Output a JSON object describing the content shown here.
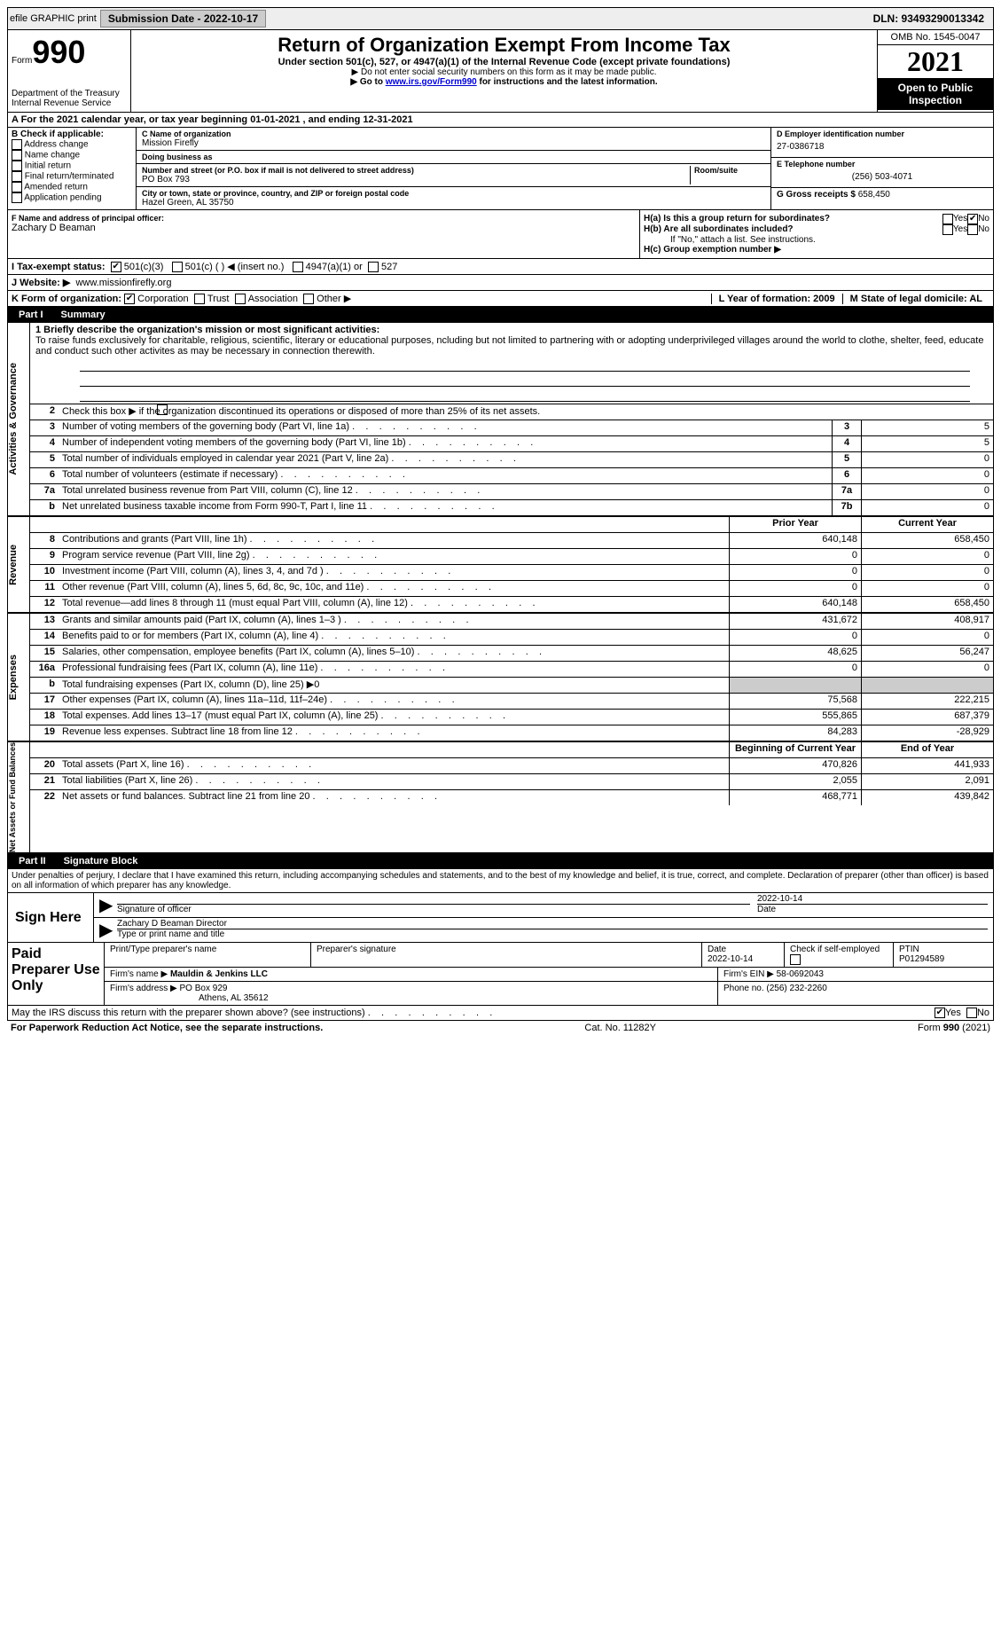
{
  "top": {
    "efile": "efile GRAPHIC print",
    "submission": "Submission Date - 2022-10-17",
    "dln": "DLN: 93493290013342"
  },
  "header": {
    "form_label": "Form",
    "form_number": "990",
    "title": "Return of Organization Exempt From Income Tax",
    "subtitle": "Under section 501(c), 527, or 4947(a)(1) of the Internal Revenue Code (except private foundations)",
    "note1": "▶ Do not enter social security numbers on this form as it may be made public.",
    "note2_pre": "▶ Go to ",
    "note2_link": "www.irs.gov/Form990",
    "note2_post": " for instructions and the latest information.",
    "dept": "Department of the Treasury",
    "irs": "Internal Revenue Service",
    "omb": "OMB No. 1545-0047",
    "year": "2021",
    "open": "Open to Public Inspection"
  },
  "sectionA": "A For the 2021 calendar year, or tax year beginning 01-01-2021    , and ending 12-31-2021",
  "B": {
    "label": "B Check if applicable:",
    "opts": [
      "Address change",
      "Name change",
      "Initial return",
      "Final return/terminated",
      "Amended return",
      "Application pending"
    ]
  },
  "C": {
    "name_label": "C Name of organization",
    "name": "Mission Firefly",
    "dba_label": "Doing business as",
    "dba": "",
    "street_label": "Number and street (or P.O. box if mail is not delivered to street address)",
    "room_label": "Room/suite",
    "street": "PO Box 793",
    "city_label": "City or town, state or province, country, and ZIP or foreign postal code",
    "city": "Hazel Green, AL  35750"
  },
  "D": {
    "label": "D Employer identification number",
    "value": "27-0386718"
  },
  "E": {
    "label": "E Telephone number",
    "value": "(256) 503-4071"
  },
  "G": {
    "label": "G Gross receipts $",
    "value": "658,450"
  },
  "F": {
    "label": "F  Name and address of principal officer:",
    "value": "Zachary D Beaman"
  },
  "H": {
    "a": "H(a)  Is this a group return for subordinates?",
    "b": "H(b)  Are all subordinates included?",
    "b_note": "If \"No,\" attach a list. See instructions.",
    "c": "H(c)  Group exemption number ▶"
  },
  "I": {
    "label": "I   Tax-exempt status:",
    "o1": "501(c)(3)",
    "o2": "501(c) (  ) ◀ (insert no.)",
    "o3": "4947(a)(1) or",
    "o4": "527"
  },
  "J": {
    "label": "J   Website: ▶",
    "value": "www.missionfirefly.org"
  },
  "K": {
    "label": "K Form of organization:",
    "o1": "Corporation",
    "o2": "Trust",
    "o3": "Association",
    "o4": "Other ▶"
  },
  "L": {
    "label": "L Year of formation: 2009"
  },
  "M": {
    "label": "M State of legal domicile: AL"
  },
  "part1": {
    "num": "Part I",
    "title": "Summary",
    "l1_label": "1  Briefly describe the organization's mission or most significant activities:",
    "l1_text": "To raise funds exclusively for charitable, religious, scientific, literary or educational purposes, ncluding but not limited to partnering with or adopting underprivileged villages around the world to clothe, shelter, feed, educate and conduct such other activites as may be necessary in connection therewith.",
    "l2": "Check this box ▶      if the organization discontinued its operations or disposed of more than 25% of its net assets.",
    "rows_gov": [
      {
        "n": "3",
        "d": "Number of voting members of the governing body (Part VI, line 1a)",
        "b": "3",
        "v": "5"
      },
      {
        "n": "4",
        "d": "Number of independent voting members of the governing body (Part VI, line 1b)",
        "b": "4",
        "v": "5"
      },
      {
        "n": "5",
        "d": "Total number of individuals employed in calendar year 2021 (Part V, line 2a)",
        "b": "5",
        "v": "0"
      },
      {
        "n": "6",
        "d": "Total number of volunteers (estimate if necessary)",
        "b": "6",
        "v": "0"
      },
      {
        "n": "7a",
        "d": "Total unrelated business revenue from Part VIII, column (C), line 12",
        "b": "7a",
        "v": "0"
      },
      {
        "n": "b",
        "d": "Net unrelated business taxable income from Form 990-T, Part I, line 11",
        "b": "7b",
        "v": "0"
      }
    ],
    "hdr_prior": "Prior Year",
    "hdr_current": "Current Year",
    "rows_rev": [
      {
        "n": "8",
        "d": "Contributions and grants (Part VIII, line 1h)",
        "p": "640,148",
        "c": "658,450"
      },
      {
        "n": "9",
        "d": "Program service revenue (Part VIII, line 2g)",
        "p": "0",
        "c": "0"
      },
      {
        "n": "10",
        "d": "Investment income (Part VIII, column (A), lines 3, 4, and 7d )",
        "p": "0",
        "c": "0"
      },
      {
        "n": "11",
        "d": "Other revenue (Part VIII, column (A), lines 5, 6d, 8c, 9c, 10c, and 11e)",
        "p": "0",
        "c": "0"
      },
      {
        "n": "12",
        "d": "Total revenue—add lines 8 through 11 (must equal Part VIII, column (A), line 12)",
        "p": "640,148",
        "c": "658,450"
      }
    ],
    "rows_exp": [
      {
        "n": "13",
        "d": "Grants and similar amounts paid (Part IX, column (A), lines 1–3 )",
        "p": "431,672",
        "c": "408,917"
      },
      {
        "n": "14",
        "d": "Benefits paid to or for members (Part IX, column (A), line 4)",
        "p": "0",
        "c": "0"
      },
      {
        "n": "15",
        "d": "Salaries, other compensation, employee benefits (Part IX, column (A), lines 5–10)",
        "p": "48,625",
        "c": "56,247"
      },
      {
        "n": "16a",
        "d": "Professional fundraising fees (Part IX, column (A), line 11e)",
        "p": "0",
        "c": "0"
      },
      {
        "n": "b",
        "d": "Total fundraising expenses (Part IX, column (D), line 25) ▶0",
        "p": "",
        "c": ""
      },
      {
        "n": "17",
        "d": "Other expenses (Part IX, column (A), lines 11a–11d, 11f–24e)",
        "p": "75,568",
        "c": "222,215"
      },
      {
        "n": "18",
        "d": "Total expenses. Add lines 13–17 (must equal Part IX, column (A), line 25)",
        "p": "555,865",
        "c": "687,379"
      },
      {
        "n": "19",
        "d": "Revenue less expenses. Subtract line 18 from line 12",
        "p": "84,283",
        "c": "-28,929"
      }
    ],
    "hdr_boy": "Beginning of Current Year",
    "hdr_eoy": "End of Year",
    "rows_net": [
      {
        "n": "20",
        "d": "Total assets (Part X, line 16)",
        "p": "470,826",
        "c": "441,933"
      },
      {
        "n": "21",
        "d": "Total liabilities (Part X, line 26)",
        "p": "2,055",
        "c": "2,091"
      },
      {
        "n": "22",
        "d": "Net assets or fund balances. Subtract line 21 from line 20",
        "p": "468,771",
        "c": "439,842"
      }
    ],
    "side_gov": "Activities & Governance",
    "side_rev": "Revenue",
    "side_exp": "Expenses",
    "side_net": "Net Assets or Fund Balances"
  },
  "part2": {
    "num": "Part II",
    "title": "Signature Block",
    "penalty": "Under penalties of perjury, I declare that I have examined this return, including accompanying schedules and statements, and to the best of my knowledge and belief, it is true, correct, and complete. Declaration of preparer (other than officer) is based on all information of which preparer has any knowledge.",
    "sign_here": "Sign Here",
    "sig_officer": "Signature of officer",
    "date": "Date",
    "date_val": "2022-10-14",
    "name_title": "Zachary D Beaman  Director",
    "type_name": "Type or print name and title",
    "paid": "Paid Preparer Use Only",
    "h1": "Print/Type preparer's name",
    "h2": "Preparer's signature",
    "h3": "Date",
    "h3v": "2022-10-14",
    "h4": "Check      if self-employed",
    "h5": "PTIN",
    "h5v": "P01294589",
    "firm_name_l": "Firm's name    ▶",
    "firm_name": "Mauldin & Jenkins LLC",
    "firm_ein_l": "Firm's EIN ▶",
    "firm_ein": "58-0692043",
    "firm_addr_l": "Firm's address ▶",
    "firm_addr": "PO Box 929",
    "firm_addr2": "Athens, AL  35612",
    "phone_l": "Phone no.",
    "phone": "(256) 232-2260",
    "discuss": "May the IRS discuss this return with the preparer shown above? (see instructions)"
  },
  "footer": {
    "left": "For Paperwork Reduction Act Notice, see the separate instructions.",
    "mid": "Cat. No. 11282Y",
    "right": "Form 990 (2021)"
  }
}
